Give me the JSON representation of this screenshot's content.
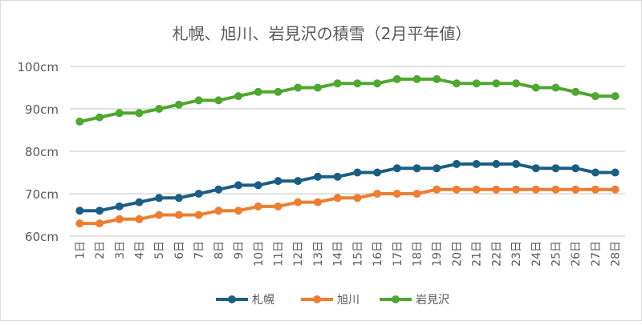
{
  "chart_data": {
    "type": "line",
    "title": "札幌、旭川、岩見沢の積雪（2月平年値）",
    "xlabel": "",
    "ylabel": "",
    "ylim": [
      60,
      100
    ],
    "yticks": [
      "60cm",
      "70cm",
      "80cm",
      "90cm",
      "100cm"
    ],
    "ytick_values": [
      60,
      70,
      80,
      90,
      100
    ],
    "grid": true,
    "legend_position": "bottom",
    "categories": [
      "1日",
      "2日",
      "3日",
      "4日",
      "5日",
      "6日",
      "7日",
      "8日",
      "9日",
      "10日",
      "11日",
      "12日",
      "13日",
      "14日",
      "15日",
      "16日",
      "17日",
      "18日",
      "19日",
      "20日",
      "21日",
      "22日",
      "23日",
      "24日",
      "25日",
      "26日",
      "27日",
      "28日"
    ],
    "series": [
      {
        "name": "札幌",
        "color": "#1a5e83",
        "values": [
          66,
          66,
          67,
          68,
          69,
          69,
          70,
          71,
          72,
          72,
          73,
          73,
          74,
          74,
          75,
          75,
          76,
          76,
          76,
          77,
          77,
          77,
          77,
          76,
          76,
          76,
          75,
          75
        ]
      },
      {
        "name": "旭川",
        "color": "#ed7d31",
        "values": [
          63,
          63,
          64,
          64,
          65,
          65,
          65,
          66,
          66,
          67,
          67,
          68,
          68,
          69,
          69,
          70,
          70,
          70,
          71,
          71,
          71,
          71,
          71,
          71,
          71,
          71,
          71,
          71
        ]
      },
      {
        "name": "岩見沢",
        "color": "#4ea72e",
        "values": [
          87,
          88,
          89,
          89,
          90,
          91,
          92,
          92,
          93,
          94,
          94,
          95,
          95,
          96,
          96,
          96,
          97,
          97,
          97,
          96,
          96,
          96,
          96,
          95,
          95,
          94,
          93,
          93
        ]
      }
    ]
  }
}
